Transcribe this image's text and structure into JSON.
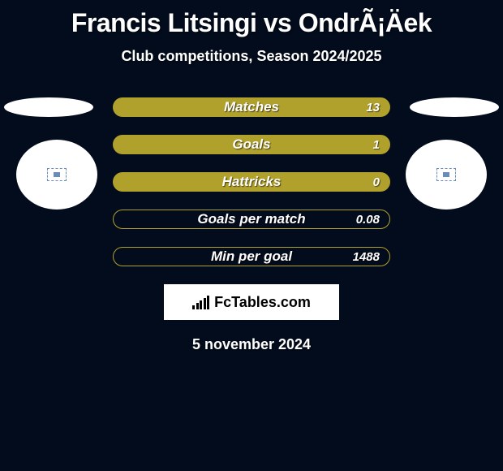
{
  "title": "Francis Litsingi vs OndrÃ¡Äek",
  "subtitle": "Club competitions, Season 2024/2025",
  "date": "5 november 2024",
  "logo_text": "FcTables.com",
  "colors": {
    "background": "#030c1c",
    "bar_fill": "#b0a02c",
    "bar_border": "#b0a02c",
    "text": "#ffffff"
  },
  "stats": [
    {
      "label": "Matches",
      "value": "13",
      "filled": true
    },
    {
      "label": "Goals",
      "value": "1",
      "filled": true
    },
    {
      "label": "Hattricks",
      "value": "0",
      "filled": true
    },
    {
      "label": "Goals per match",
      "value": "0.08",
      "filled": false
    },
    {
      "label": "Min per goal",
      "value": "1488",
      "filled": false
    }
  ],
  "logo_bars_heights": [
    5,
    8,
    11,
    14,
    17
  ]
}
